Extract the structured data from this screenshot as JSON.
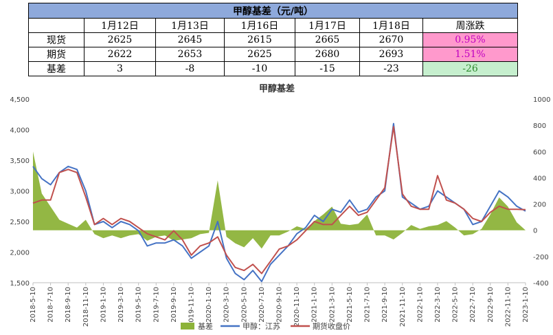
{
  "table": {
    "title": "甲醇基差（元/吨）",
    "headers": [
      "",
      "1月12日",
      "1月13日",
      "1月16日",
      "1月17日",
      "1月18日",
      "周涨跌"
    ],
    "rows": [
      {
        "label": "现货",
        "values": [
          "2625",
          "2645",
          "2615",
          "2665",
          "2670"
        ],
        "change": "0.95%"
      },
      {
        "label": "期货",
        "values": [
          "2622",
          "2653",
          "2625",
          "2680",
          "2693"
        ],
        "change": "1.51%"
      },
      {
        "label": "基差",
        "values": [
          "3",
          "-8",
          "-10",
          "-15",
          "-23"
        ],
        "change": "-26"
      }
    ],
    "colors": {
      "header": "#8ea9db",
      "positive": "#ff99cc",
      "negative": "#c6efce"
    }
  },
  "chart_data": {
    "type": "line",
    "title": "甲醇基差",
    "left_axis": {
      "ylim": [
        1500,
        4500
      ],
      "ticks": [
        "1,500",
        "2,000",
        "2,500",
        "3,000",
        "3,500",
        "4,000",
        "4,500"
      ]
    },
    "right_axis": {
      "ylim": [
        -400,
        1000
      ],
      "ticks": [
        "-400",
        "-200",
        "0",
        "200",
        "400",
        "600",
        "800",
        "1000"
      ]
    },
    "x_ticks": [
      "2018-5-10",
      "2018-7-10",
      "2018-9-10",
      "2018-11-10",
      "2019-1-10",
      "2019-3-10",
      "2019-5-10",
      "2019-7-10",
      "2019-9-10",
      "2019-11-10",
      "2020-1-10",
      "2020-3-10",
      "2020-5-10",
      "2020-7-10",
      "2020-9-10",
      "2020-11-10",
      "2021-1-10",
      "2021-3-10",
      "2021-5-10",
      "2021-7-10",
      "2021-9-10",
      "2021-11-10",
      "2022-1-10",
      "2022-3-10",
      "2022-5-10",
      "2022-7-10",
      "2022-9-10",
      "2022-11-10",
      "2023-1-10"
    ],
    "x": [
      "2018-5-10",
      "2018-6-10",
      "2018-7-10",
      "2018-8-10",
      "2018-9-10",
      "2018-10-10",
      "2018-11-10",
      "2018-12-10",
      "2019-1-10",
      "2019-2-10",
      "2019-3-10",
      "2019-4-10",
      "2019-5-10",
      "2019-6-10",
      "2019-7-10",
      "2019-8-10",
      "2019-9-10",
      "2019-10-10",
      "2019-11-10",
      "2019-12-10",
      "2020-1-10",
      "2020-2-10",
      "2020-3-10",
      "2020-4-10",
      "2020-5-10",
      "2020-6-10",
      "2020-7-10",
      "2020-8-10",
      "2020-9-10",
      "2020-10-10",
      "2020-11-10",
      "2020-12-10",
      "2021-1-10",
      "2021-2-10",
      "2021-3-10",
      "2021-4-10",
      "2021-5-10",
      "2021-6-10",
      "2021-7-10",
      "2021-8-10",
      "2021-9-10",
      "2021-10-10",
      "2021-11-10",
      "2021-12-10",
      "2022-1-10",
      "2022-2-10",
      "2022-3-10",
      "2022-4-10",
      "2022-5-10",
      "2022-6-10",
      "2022-7-10",
      "2022-8-10",
      "2022-9-10",
      "2022-10-10",
      "2022-11-10",
      "2022-12-10",
      "2023-1-10"
    ],
    "series": [
      {
        "name": "基差",
        "axis": "right",
        "kind": "area",
        "color": "#8db33a",
        "values": [
          600,
          280,
          180,
          80,
          50,
          20,
          80,
          -30,
          -60,
          -40,
          -60,
          -40,
          -30,
          -80,
          -50,
          -40,
          -80,
          -70,
          -60,
          -30,
          -20,
          380,
          -50,
          -100,
          -130,
          -60,
          -140,
          -40,
          -40,
          -10,
          30,
          10,
          70,
          120,
          180,
          50,
          40,
          50,
          120,
          -40,
          -40,
          -70,
          -20,
          40,
          10,
          30,
          40,
          70,
          20,
          -40,
          -30,
          10,
          120,
          250,
          180,
          60,
          0
        ]
      },
      {
        "name": "甲醇：江苏",
        "axis": "left",
        "kind": "line",
        "color": "#4472c4",
        "values": [
          3400,
          3200,
          3100,
          3300,
          3400,
          3350,
          3000,
          2450,
          2500,
          2400,
          2500,
          2450,
          2350,
          2100,
          2150,
          2150,
          2200,
          2100,
          1900,
          2000,
          2100,
          2500,
          1900,
          1650,
          1550,
          1700,
          1520,
          1800,
          1950,
          2100,
          2300,
          2400,
          2600,
          2500,
          2700,
          2650,
          2850,
          2650,
          2700,
          2900,
          3000,
          4100,
          2900,
          2800,
          2700,
          2750,
          3000,
          2900,
          2800,
          2700,
          2450,
          2500,
          2750,
          3000,
          2900,
          2750,
          2670
        ]
      },
      {
        "name": "期货收盘价",
        "axis": "left",
        "kind": "line",
        "color": "#c0504d",
        "values": [
          2800,
          2850,
          2850,
          3300,
          3350,
          3300,
          2900,
          2450,
          2550,
          2450,
          2550,
          2500,
          2400,
          2300,
          2250,
          2200,
          2350,
          2200,
          1950,
          2100,
          2150,
          2250,
          1950,
          1750,
          1700,
          1800,
          1650,
          1850,
          2050,
          2100,
          2200,
          2350,
          2500,
          2450,
          2450,
          2600,
          2750,
          2600,
          2650,
          2850,
          3050,
          4050,
          2950,
          2750,
          2700,
          2700,
          3250,
          2850,
          2800,
          2700,
          2550,
          2500,
          2650,
          2750,
          2700,
          2700,
          2693
        ]
      }
    ],
    "legend": {
      "position": "bottom",
      "entries": [
        "基差",
        "甲醇：江苏",
        "期货收盘价"
      ]
    },
    "grid": false
  }
}
